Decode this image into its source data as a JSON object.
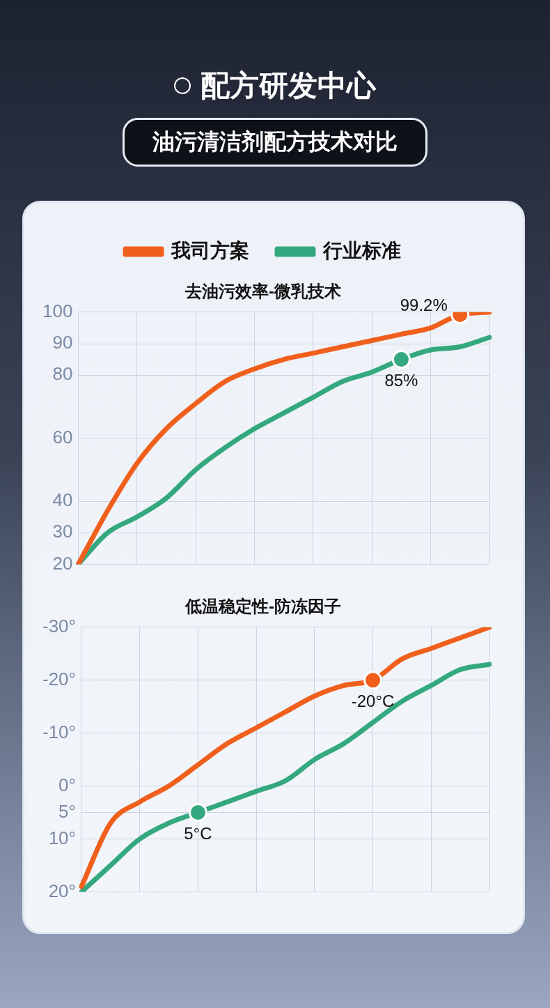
{
  "chart_data": [
    {
      "type": "line",
      "title": "去油污效率-微乳技术",
      "annotations": [
        "配方研发中心",
        "油污清洁剂配方技术对比"
      ],
      "categories": [
        null,
        null,
        null,
        null,
        null,
        null,
        null,
        null,
        null,
        null,
        null,
        null,
        null,
        null,
        null
      ],
      "series": [
        {
          "name": "我司方案",
          "color": "#f0601c",
          "values": [
            20,
            37,
            52,
            63,
            71,
            78,
            82,
            85,
            87,
            89,
            91,
            93,
            95,
            99.2,
            100
          ],
          "value_labels": [
            null,
            null,
            null,
            null,
            null,
            null,
            null,
            null,
            null,
            null,
            null,
            null,
            null,
            "99.2%",
            null
          ]
        },
        {
          "name": "行业标准",
          "color": "#34a87e",
          "values": [
            20,
            30,
            35,
            41,
            50,
            57,
            63,
            68,
            73,
            78,
            81,
            85,
            88,
            89,
            92
          ],
          "value_labels": [
            null,
            null,
            null,
            null,
            null,
            null,
            null,
            null,
            null,
            null,
            null,
            "85%",
            null,
            null,
            null
          ]
        }
      ],
      "ylim": [
        20,
        100
      ],
      "yticks": [
        20,
        30,
        40,
        60,
        80,
        90,
        100
      ],
      "grid": true,
      "legend": "top",
      "tick_labels": "y"
    },
    {
      "type": "line",
      "title": "低温稳定性-防冻因子",
      "categories": [
        null,
        null,
        null,
        null,
        null,
        null,
        null,
        null,
        null,
        null,
        null,
        null,
        null,
        null,
        null
      ],
      "series": [
        {
          "color": "#f0601c",
          "values": [
            19,
            7,
            3,
            0,
            -4,
            -8,
            -11,
            -14,
            -17,
            -19,
            -20,
            -24,
            -26,
            -28,
            -30
          ],
          "value_labels": [
            null,
            null,
            null,
            null,
            null,
            null,
            null,
            null,
            null,
            null,
            "-20°C",
            null,
            null,
            null,
            null
          ]
        },
        {
          "color": "#34a87e",
          "values": [
            20,
            15,
            10,
            7,
            5,
            3,
            1,
            -1,
            -5,
            -8,
            -12,
            -16,
            -19,
            -22,
            -23
          ],
          "value_labels": [
            null,
            null,
            null,
            null,
            "5°C",
            null,
            null,
            null,
            null,
            null,
            null,
            null,
            null,
            null,
            null
          ]
        }
      ],
      "ylim": [
        20,
        -30
      ],
      "yticks": [
        {
          "value": 20,
          "label": "20°"
        },
        {
          "value": 10,
          "label": "10°"
        },
        {
          "value": 5,
          "label": "5°"
        },
        {
          "value": 0,
          "label": "0°"
        },
        {
          "value": -10,
          "label": "-10°"
        },
        {
          "value": -20,
          "label": "-20°"
        },
        {
          "value": -30,
          "label": "-30°"
        }
      ],
      "grid": true,
      "tick_labels": "y"
    }
  ]
}
